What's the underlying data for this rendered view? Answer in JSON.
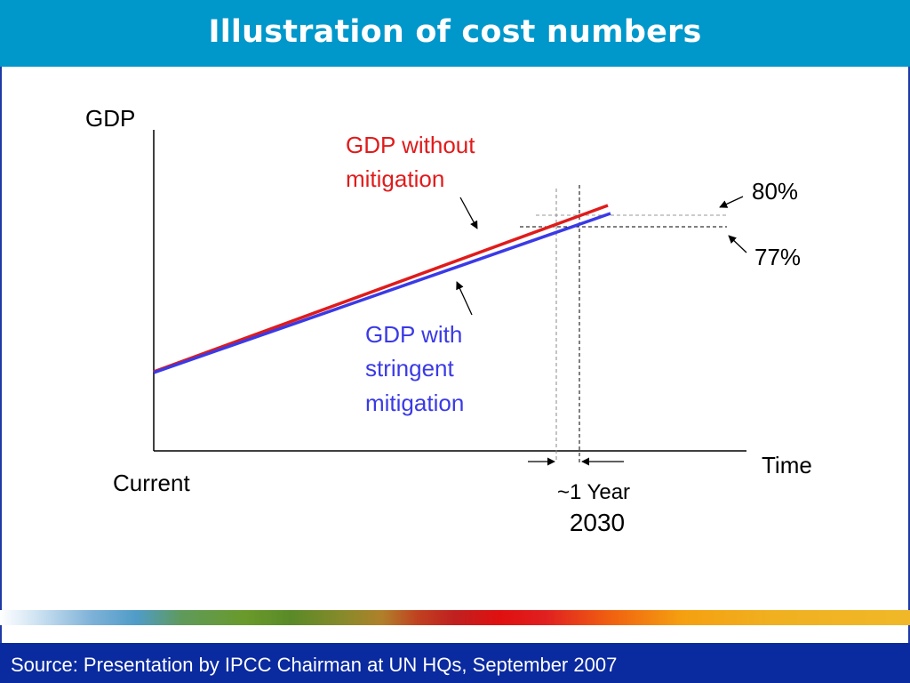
{
  "slide": {
    "title": "Illustration of cost numbers",
    "source": "Source: Presentation by IPCC Chairman at UN HQs, September 2007"
  },
  "diagram": {
    "axes": {
      "y_label": "GDP",
      "x_label": "Time",
      "x_origin_label": "Current"
    },
    "series": [
      {
        "label_lines": [
          "GDP without",
          "mitigation"
        ],
        "label_lines_split": [
          [
            "GDP",
            " without"
          ],
          [
            "mitigation"
          ]
        ],
        "color": "#e01b1b"
      },
      {
        "label_lines": [
          "GDP with",
          "stringent",
          "mitigation"
        ],
        "label_lines_split": [
          [
            "GDP",
            " with"
          ],
          [
            "stringent"
          ],
          [
            "mitigation"
          ]
        ],
        "color": "#3a3ae6"
      }
    ],
    "annotations": {
      "upper_pct": "80%",
      "lower_pct": "77%",
      "gap_label": "~1 Year",
      "year_label": "2030"
    },
    "colors": {
      "header": "#0097cb",
      "footer": "#0a2aa0",
      "axis": "#000000",
      "text": "#000000"
    }
  }
}
